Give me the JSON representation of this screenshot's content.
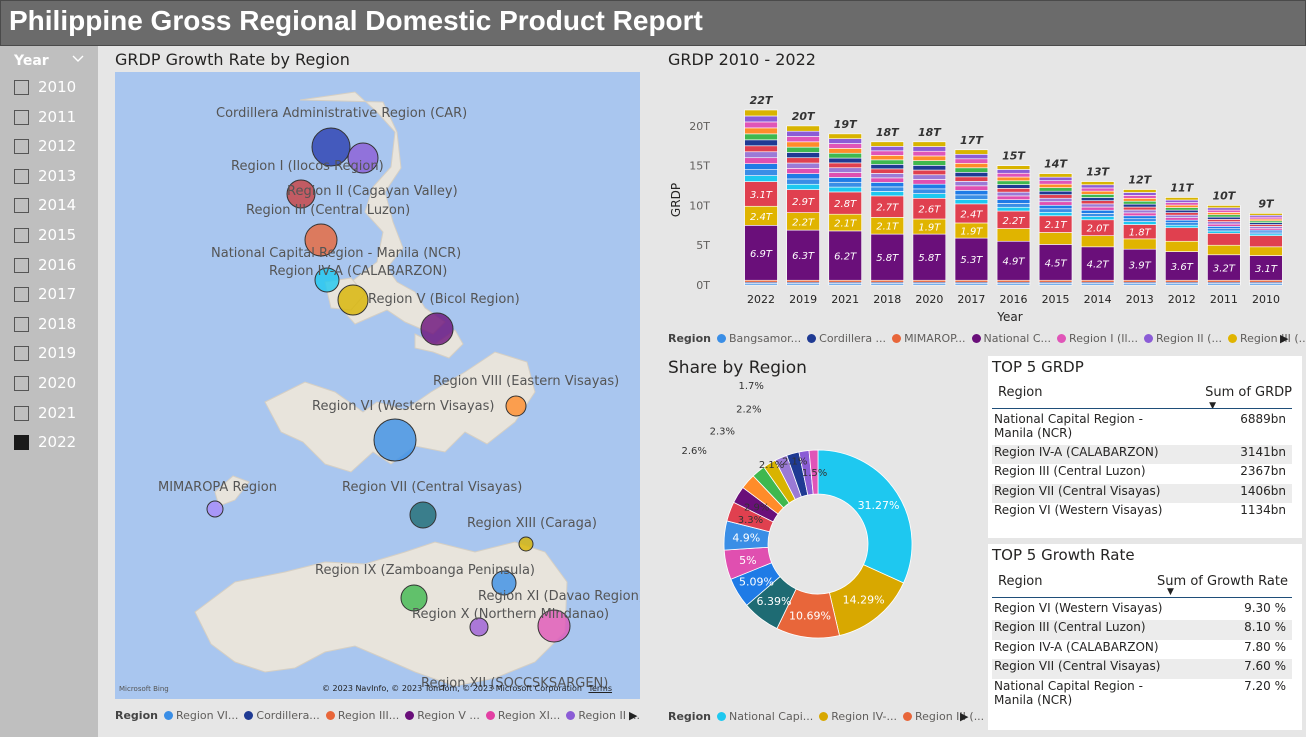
{
  "title": "Philippine Gross Regional Domestic Product Report",
  "slicer": {
    "header": "Year",
    "years": [
      "2010",
      "2011",
      "2012",
      "2013",
      "2014",
      "2015",
      "2016",
      "2017",
      "2018",
      "2019",
      "2020",
      "2021",
      "2022"
    ],
    "selected": "2022"
  },
  "map": {
    "title": "GRDP Growth Rate by Region",
    "labels": [
      "Cordillera Administrative Region (CAR)",
      "Region I (Ilocos Region)",
      "Region II (Cagayan Valley)",
      "Region III (Central Luzon)",
      "National Capital Region - Manila (NCR)",
      "Region IV-A (CALABARZON)",
      "Region V (Bicol Region)",
      "Region VIII (Eastern Visayas)",
      "Region VI (Western Visayas)",
      "MIMAROPA Region",
      "Region VII (Central Visayas)",
      "Region XIII (Caraga)",
      "Region IX (Zamboanga Peninsula)",
      "Region XI (Davao Region)",
      "Region X (Northern Mindanao)",
      "Region XII (SOCCSKSARGEN)"
    ],
    "credit_logo": "Microsoft Bing",
    "copyright": "© 2023 NavInfo, © 2023 TomTom, © 2023 Microsoft Corporation",
    "terms": "Terms",
    "legend": {
      "title": "Region",
      "items": [
        {
          "name": "Region VI...",
          "color": "#3a8ee6"
        },
        {
          "name": "Cordillera...",
          "color": "#1f3a93"
        },
        {
          "name": "Region III...",
          "color": "#e8663a"
        },
        {
          "name": "Region V ...",
          "color": "#6a0f7a"
        },
        {
          "name": "Region XI...",
          "color": "#e23fa3"
        },
        {
          "name": "Region II ...",
          "color": "#8b5cd6"
        }
      ]
    }
  },
  "bar": {
    "title": "GRDP 2010 - 2022",
    "legend": {
      "title": "Region",
      "items": [
        {
          "name": "Bangsamor...",
          "color": "#3a8ee6"
        },
        {
          "name": "Cordillera ...",
          "color": "#1f3a93"
        },
        {
          "name": "MIMAROP...",
          "color": "#e8663a"
        },
        {
          "name": "National C...",
          "color": "#6a0f7a"
        },
        {
          "name": "Region I (Il...",
          "color": "#e055b8"
        },
        {
          "name": "Region II (...",
          "color": "#8b5cd6"
        },
        {
          "name": "Region III (...",
          "color": "#e0b400"
        }
      ]
    }
  },
  "donut": {
    "title": "Share by Region",
    "legend": {
      "title": "Region",
      "items": [
        {
          "name": "National Capi...",
          "color": "#1ec8f0"
        },
        {
          "name": "Region IV-...",
          "color": "#d8a800"
        },
        {
          "name": "Region III (...",
          "color": "#e8663a"
        }
      ]
    }
  },
  "top_grdp": {
    "title": "TOP 5 GRDP",
    "col1": "Region",
    "col2": "Sum of GRDP",
    "rows": [
      {
        "name": "National Capital Region - Manila (NCR)",
        "value": "6889bn"
      },
      {
        "name": "Region IV-A (CALABARZON)",
        "value": "3141bn"
      },
      {
        "name": "Region III (Central Luzon)",
        "value": "2367bn"
      },
      {
        "name": "Region VII (Central Visayas)",
        "value": "1406bn"
      },
      {
        "name": "Region VI (Western Visayas)",
        "value": "1134bn"
      }
    ]
  },
  "top_growth": {
    "title": "TOP 5 Growth Rate",
    "col1": "Region",
    "col2": "Sum of Growth Rate",
    "rows": [
      {
        "name": "Region VI (Western Visayas)",
        "value": "9.30 %"
      },
      {
        "name": "Region III (Central Luzon)",
        "value": "8.10 %"
      },
      {
        "name": "Region IV-A (CALABARZON)",
        "value": "7.80 %"
      },
      {
        "name": "Region VII (Central Visayas)",
        "value": "7.60 %"
      },
      {
        "name": "National Capital Region - Manila (NCR)",
        "value": "7.20 %"
      }
    ]
  },
  "chart_data": [
    {
      "type": "bar",
      "title": "GRDP 2010 - 2022",
      "xlabel": "Year",
      "ylabel": "GRDP",
      "categories": [
        "2022",
        "2019",
        "2021",
        "2018",
        "2020",
        "2017",
        "2016",
        "2015",
        "2014",
        "2013",
        "2012",
        "2011",
        "2010"
      ],
      "totals": [
        22,
        20,
        19,
        18,
        18,
        17,
        15,
        14,
        13,
        12,
        11,
        10,
        9
      ],
      "total_labels": [
        "22T",
        "20T",
        "19T",
        "18T",
        "18T",
        "17T",
        "15T",
        "14T",
        "13T",
        "12T",
        "11T",
        "10T",
        "9T"
      ],
      "ylim": [
        0,
        22
      ],
      "yticks": [
        0,
        5,
        10,
        15,
        20
      ],
      "ytick_labels": [
        "0T",
        "5T",
        "10T",
        "15T",
        "20T"
      ],
      "series": [
        {
          "name": "National C...",
          "color": "#6a0f7a",
          "values": [
            6.9,
            6.3,
            6.2,
            5.8,
            5.8,
            5.3,
            4.9,
            4.5,
            4.2,
            3.9,
            3.6,
            3.2,
            3.1
          ],
          "labels": [
            "6.9T",
            "6.3T",
            "6.2T",
            "5.8T",
            "5.8T",
            "5.3T",
            "4.9T",
            "4.5T",
            "4.2T",
            "3.9T",
            "3.6T",
            "3.2T",
            "3.1T"
          ]
        },
        {
          "name": "Region III (...",
          "color": "#e0b400",
          "values": [
            2.4,
            2.2,
            2.1,
            2.1,
            1.9,
            1.9,
            1.6,
            1.5,
            1.4,
            1.3,
            1.3,
            1.2,
            1.1
          ],
          "labels": [
            "2.4T",
            "2.2T",
            "2.1T",
            "2.1T",
            "1.9T",
            "1.9T",
            "",
            "",
            "",
            "",
            "",
            "",
            ""
          ]
        },
        {
          "name": "Region IV-A",
          "values": [
            3.1,
            2.9,
            2.8,
            2.7,
            2.6,
            2.4,
            2.2,
            2.1,
            2.0,
            1.8,
            1.7,
            1.5,
            1.4
          ],
          "labels": [
            "3.1T",
            "2.9T",
            "2.8T",
            "2.7T",
            "2.6T",
            "2.4T",
            "2.2T",
            "2.1T",
            "2.0T",
            "1.8T",
            "",
            "",
            ""
          ]
        }
      ]
    },
    {
      "type": "pie",
      "title": "Share by Region",
      "donut": true,
      "slices": [
        {
          "name": "National Capi...",
          "value": 31.27,
          "label": "31.27%",
          "color": "#1ec8f0"
        },
        {
          "name": "Region IV-...",
          "value": 14.29,
          "label": "14.29%",
          "color": "#d8a800"
        },
        {
          "name": "Region III (...",
          "value": 10.69,
          "label": "10.69%",
          "color": "#e8663a"
        },
        {
          "value": 6.39,
          "label": "6.39%",
          "color": "#1e6b73"
        },
        {
          "value": 5.09,
          "label": "5.09%",
          "color": "#1f7be6"
        },
        {
          "value": 5.0,
          "label": "5%",
          "color": "#e04fb0"
        },
        {
          "value": 4.9,
          "label": "4.9%",
          "color": "#3a8ee6"
        },
        {
          "value": 3.3,
          "label": "3.3%",
          "color": "#e0404f"
        },
        {
          "value": 2.9,
          "label": "2.9%",
          "color": "#6a0f7a"
        },
        {
          "value": 2.6,
          "label": "2.6%",
          "color": "#ff8c2a"
        },
        {
          "value": 2.3,
          "label": "2.3%",
          "color": "#3fb84f"
        },
        {
          "value": 2.2,
          "label": "2.2%",
          "color": "#d8b400"
        },
        {
          "value": 2.1,
          "label": "2.1%",
          "color": "#9b7ad6"
        },
        {
          "value": 2.1,
          "label": "2.1%",
          "color": "#1f3a93"
        },
        {
          "value": 1.7,
          "label": "1.7%",
          "color": "#8b5cd6"
        },
        {
          "value": 1.5,
          "label": "1.5%",
          "color": "#e055b8"
        }
      ]
    },
    {
      "type": "scatter",
      "title": "GRDP Growth Rate by Region",
      "points": [
        {
          "label": "Cordillera Administrative Region (CAR)",
          "color": "#2b3fb0"
        },
        {
          "label": "Region I (Ilocos Region)",
          "color": "#8b5cd6"
        },
        {
          "label": "Region II (Cagayan Valley)",
          "color": "#c84040"
        },
        {
          "label": "National Capital Region - Manila (NCR)",
          "color": "#e8663a"
        },
        {
          "label": "Region IV-A (CALABARZON)",
          "color": "#1ec8f0"
        },
        {
          "label": "Region V (Bicol Region)",
          "color": "#d8b400"
        },
        {
          "label": "Region V (Bicol Region)",
          "color": "#6a0f7a"
        },
        {
          "label": "Region VIII (Eastern Visayas)",
          "color": "#ff8c2a"
        },
        {
          "label": "Region VI (Western Visayas)",
          "color": "#3a8ee6"
        },
        {
          "label": "MIMAROPA Region",
          "color": "#a78bfa"
        },
        {
          "label": "Region VII (Central Visayas)",
          "color": "#1e6b73"
        },
        {
          "label": "Region XIII (Caraga)",
          "color": "#d8b400"
        },
        {
          "label": "Region IX (Zamboanga Peninsula)",
          "color": "#3fb84f"
        },
        {
          "label": "Region XI (Davao Region)",
          "color": "#3a8ee6"
        },
        {
          "label": "Region X (Northern Mindanao)",
          "color": "#9b5cd6"
        },
        {
          "label": "Region XII (SOCCSKSARGEN)",
          "color": "#e055b8"
        }
      ]
    }
  ]
}
